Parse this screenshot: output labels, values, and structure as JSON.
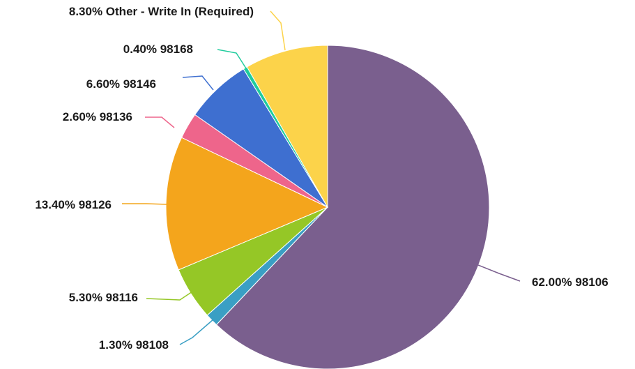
{
  "chart_data": {
    "type": "pie",
    "title": "",
    "slices": [
      {
        "label": "98106",
        "value": 62.0,
        "display": "62.00% 98106",
        "color": "#7a5f8e"
      },
      {
        "label": "98108",
        "value": 1.3,
        "display": "1.30% 98108",
        "color": "#3a9fc4"
      },
      {
        "label": "98116",
        "value": 5.3,
        "display": "5.30% 98116",
        "color": "#95c726"
      },
      {
        "label": "98126",
        "value": 13.4,
        "display": "13.40% 98126",
        "color": "#f4a51c"
      },
      {
        "label": "98136",
        "value": 2.6,
        "display": "2.60% 98136",
        "color": "#ee658b"
      },
      {
        "label": "98146",
        "value": 6.6,
        "display": "6.60% 98146",
        "color": "#3e6fd0"
      },
      {
        "label": "98168",
        "value": 0.4,
        "display": "0.40% 98168",
        "color": "#1fcc9d"
      },
      {
        "label": "Other - Write In (Required)",
        "value": 8.3,
        "display": "8.30% Other - Write In (Required)",
        "color": "#fcd34a"
      }
    ],
    "start_angle": "12 o'clock",
    "direction": "clockwise",
    "legend": "none",
    "data_labels": "outside with leader lines"
  }
}
